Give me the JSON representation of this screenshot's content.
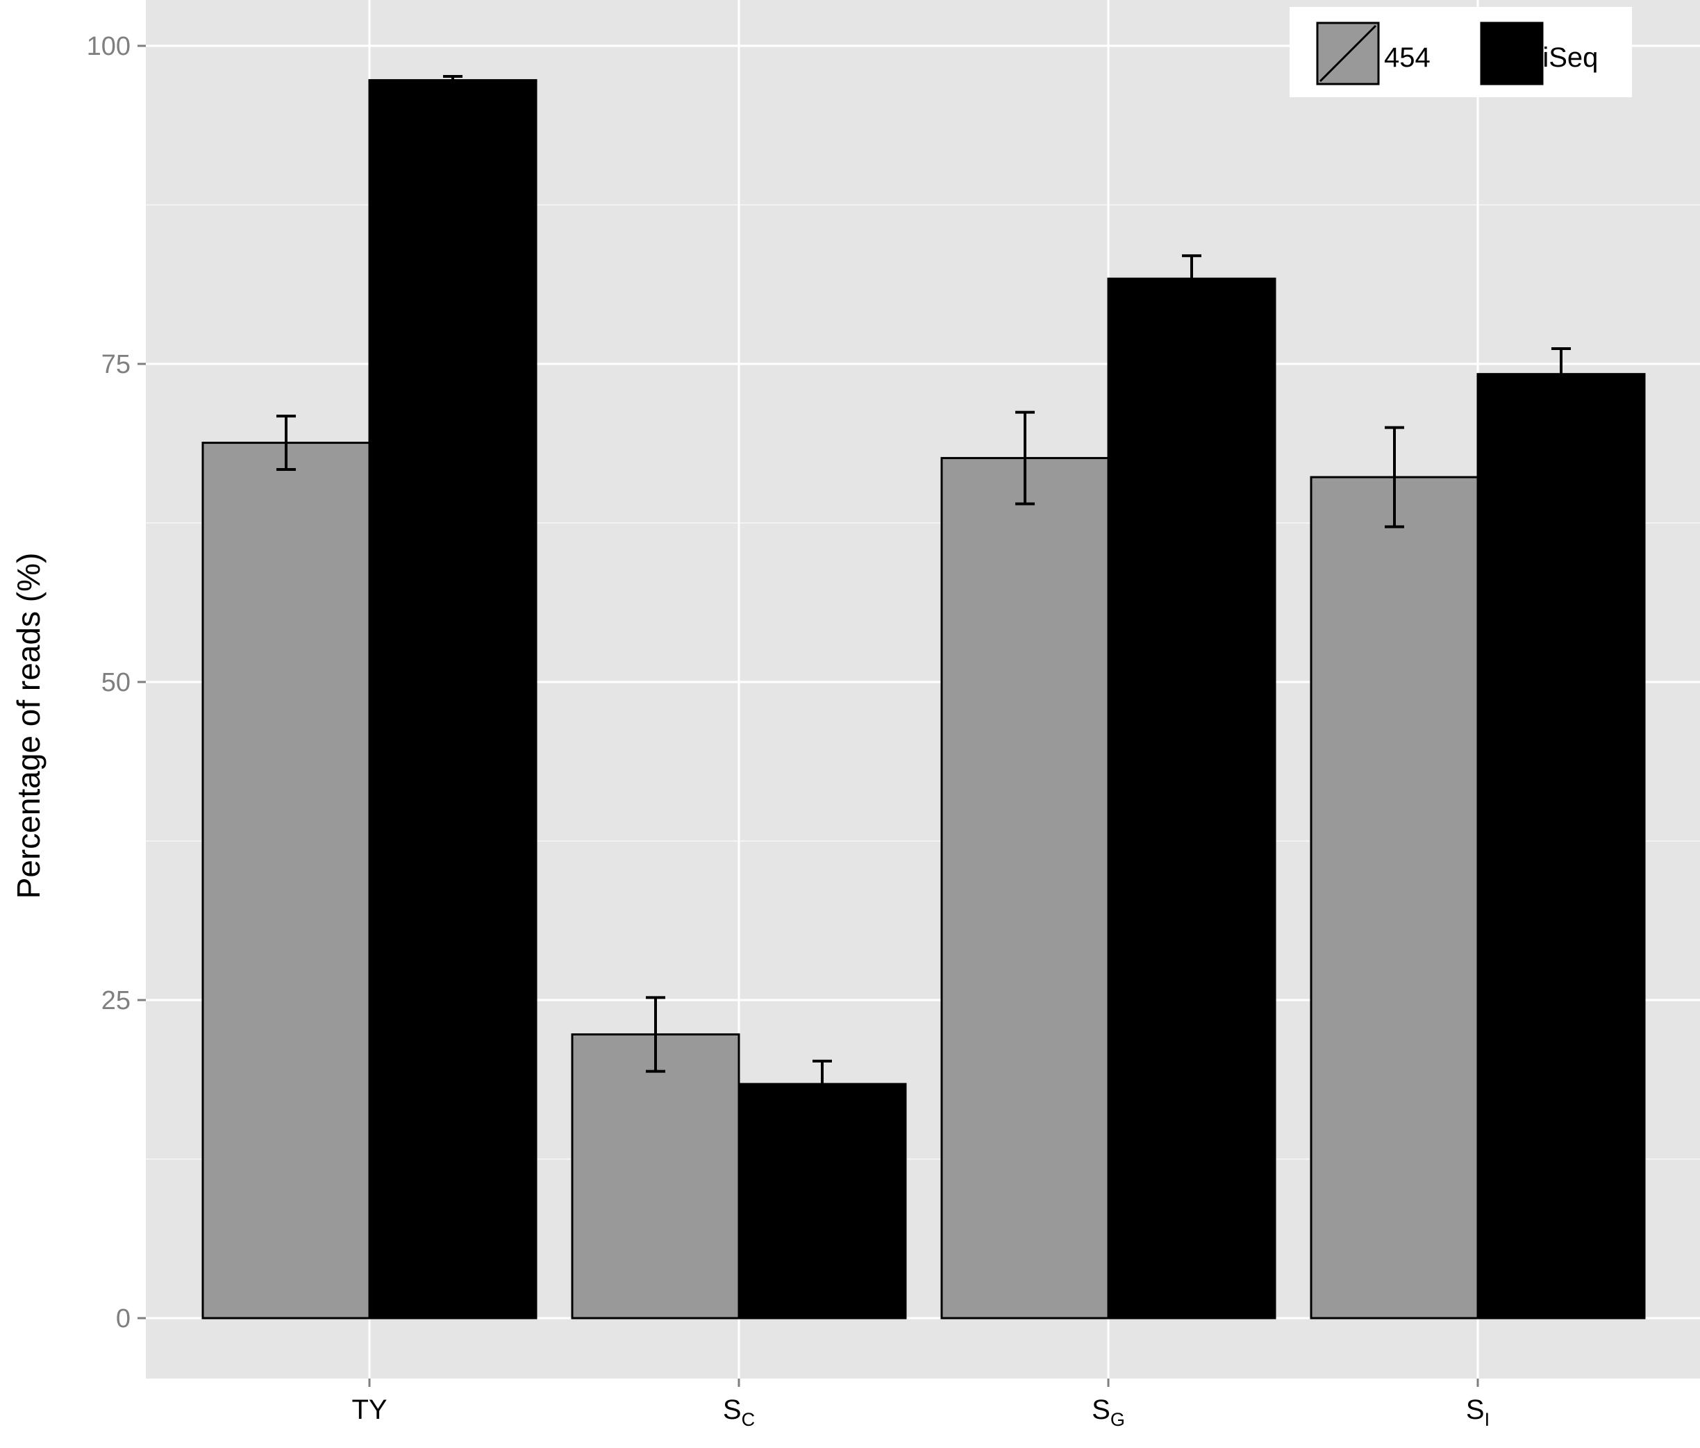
{
  "chart_data": {
    "type": "bar",
    "title": "",
    "xlabel": "",
    "ylabel": "Percentage of reads (%)",
    "ylim": [
      -4.5,
      102.5
    ],
    "yticks": [
      0,
      25,
      50,
      75,
      100
    ],
    "grid": true,
    "legend_position": "top-right",
    "categories": [
      {
        "main": "TY",
        "sub": ""
      },
      {
        "main": "S",
        "sub": "C"
      },
      {
        "main": "S",
        "sub": "G"
      },
      {
        "main": "S",
        "sub": "I"
      }
    ],
    "series": [
      {
        "name": "454",
        "color": "#999999",
        "values": [
          68.8,
          22.3,
          67.6,
          66.1
        ],
        "error": [
          2.1,
          2.9,
          3.6,
          3.9
        ]
      },
      {
        "name": "MiSeq",
        "color": "#000000",
        "values": [
          97.3,
          18.4,
          81.7,
          74.2
        ],
        "error": [
          0.3,
          1.8,
          1.8,
          2.0
        ]
      }
    ],
    "colors": {
      "panel_background": "#e5e5e5",
      "grid_major": "#ffffff",
      "grid_minor": "#f2f2f2",
      "bar_outline": "#000000"
    }
  }
}
